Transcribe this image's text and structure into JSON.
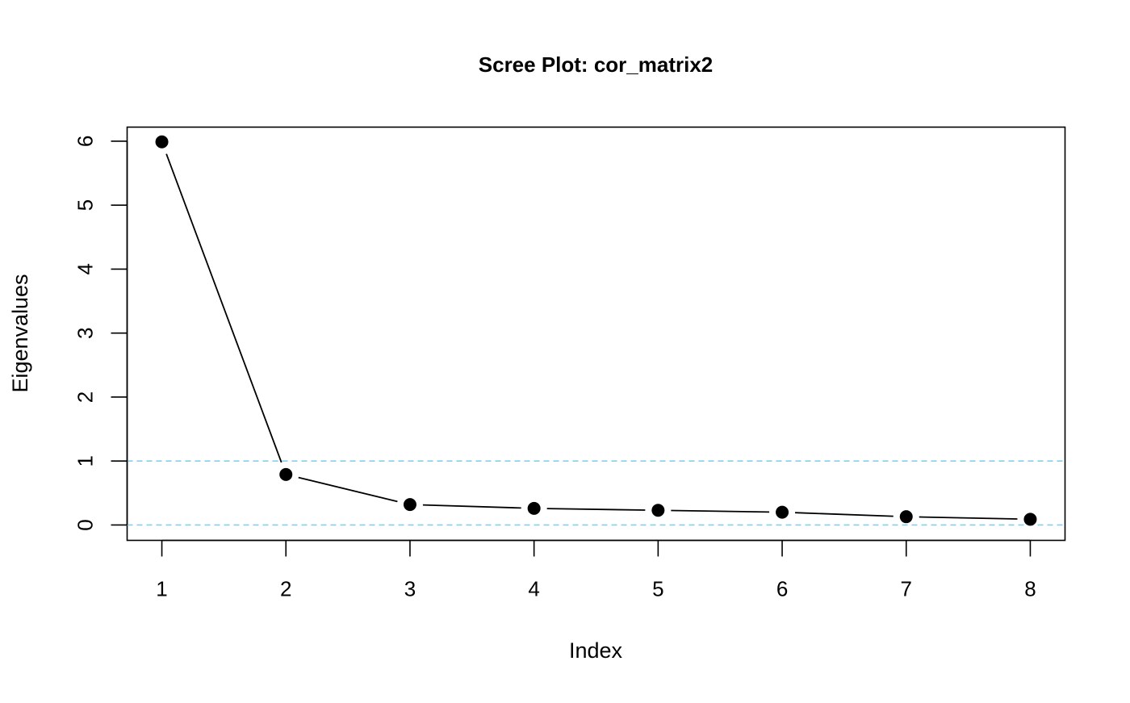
{
  "chart_data": {
    "type": "line",
    "title": "Scree Plot: cor_matrix2",
    "xlabel": "Index",
    "ylabel": "Eigenvalues",
    "x": [
      1,
      2,
      3,
      4,
      5,
      6,
      7,
      8
    ],
    "series": [
      {
        "values": [
          5.99,
          0.79,
          0.32,
          0.26,
          0.23,
          0.2,
          0.13,
          0.09
        ]
      }
    ],
    "xlim": [
      0.72,
      8.28
    ],
    "ylim": [
      -0.24,
      6.22
    ],
    "xticks": [
      1,
      2,
      3,
      4,
      5,
      6,
      7,
      8
    ],
    "xtick_labels": [
      "1",
      "2",
      "3",
      "4",
      "5",
      "6",
      "7",
      "8"
    ],
    "yticks": [
      0,
      1,
      2,
      3,
      4,
      5,
      6
    ],
    "ytick_labels": [
      "0",
      "1",
      "2",
      "3",
      "4",
      "5",
      "6"
    ],
    "reference_lines": [
      {
        "y": 1,
        "style": "dashed"
      },
      {
        "y": 0,
        "style": "dashed"
      }
    ],
    "grid": false,
    "colors": {
      "series": "#000000",
      "reference": "#87CEEB",
      "frame": "#000000"
    }
  }
}
